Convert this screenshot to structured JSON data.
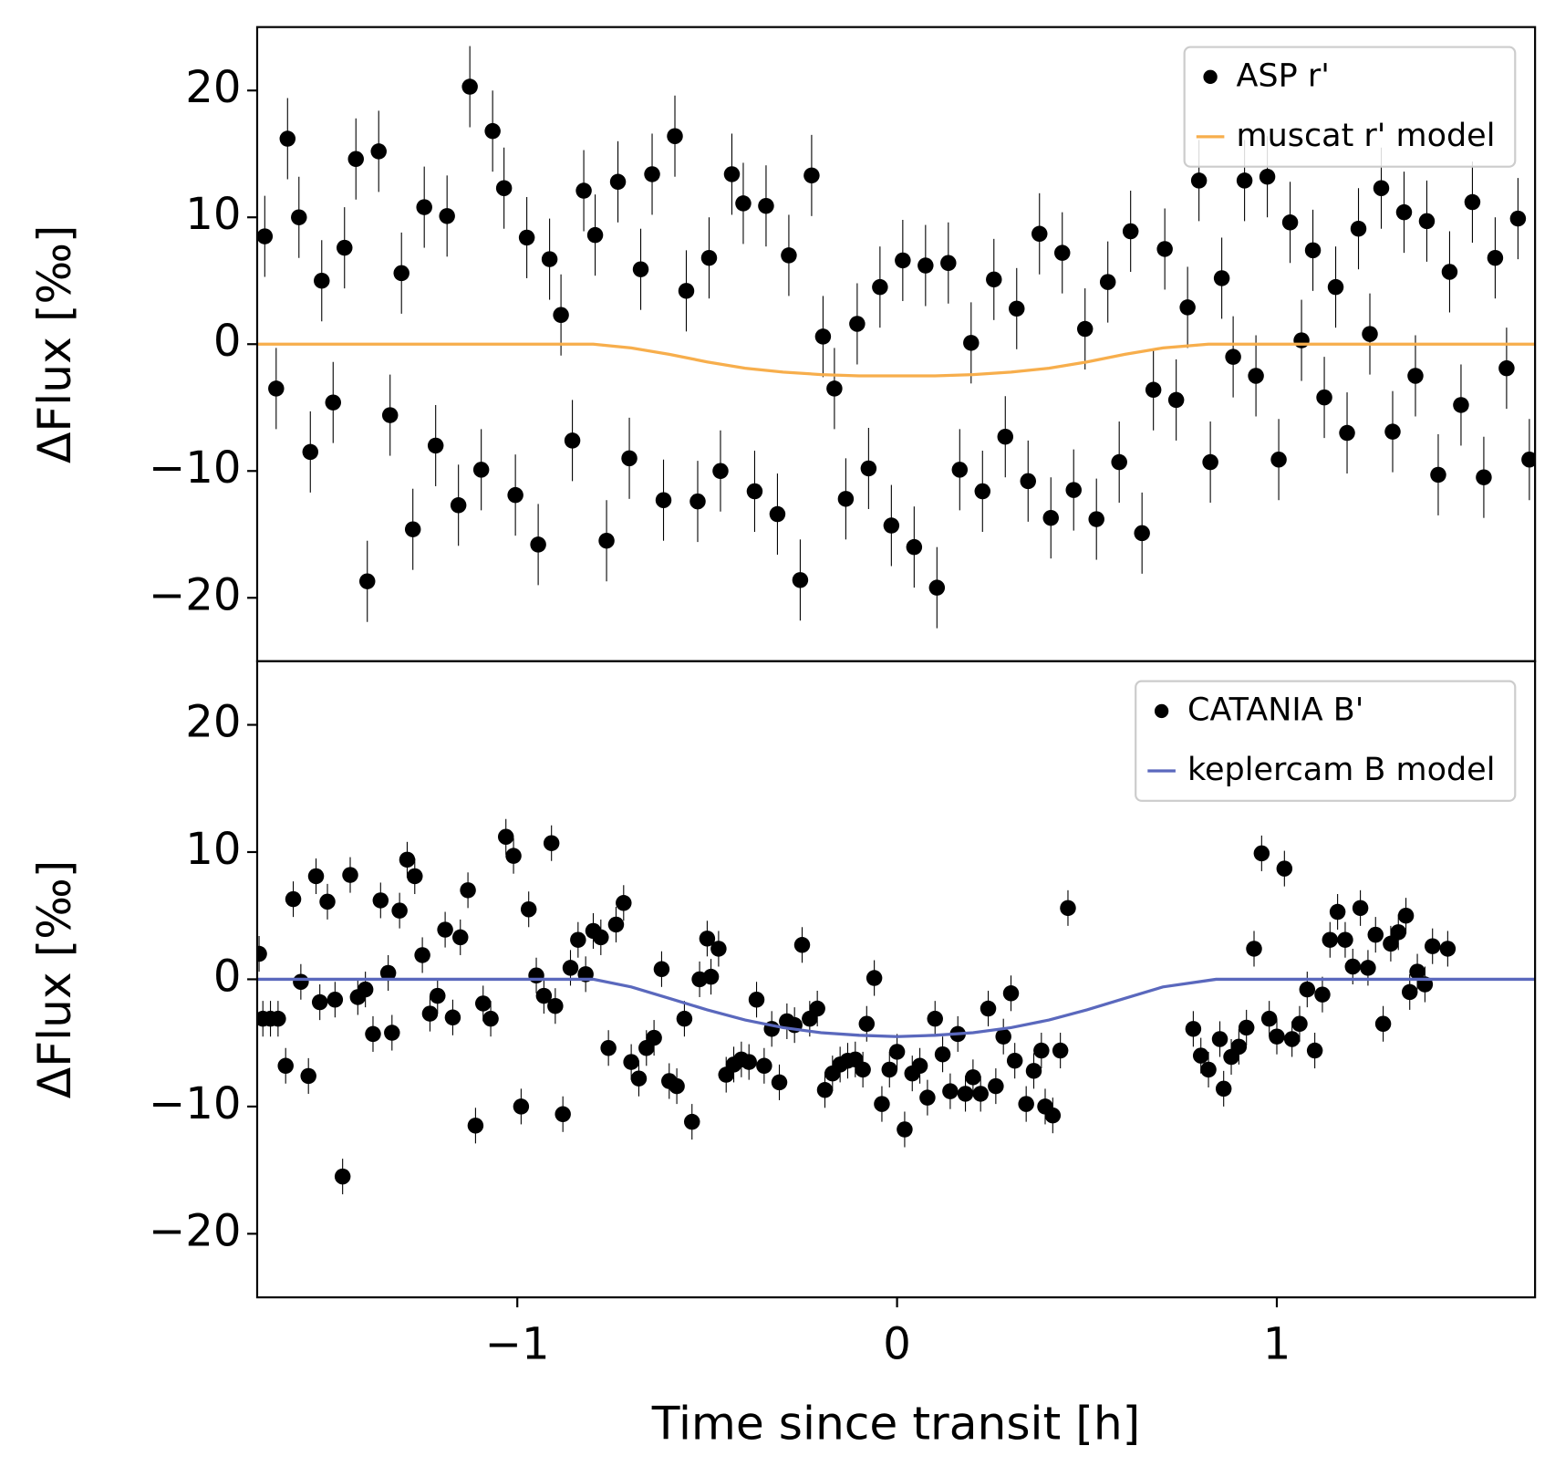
{
  "chart_data": [
    {
      "type": "scatter",
      "ylabel": "ΔFlux [‰]",
      "xlim": [
        -1.685,
        1.68
      ],
      "ylim": [
        -25,
        25
      ],
      "yticks": [
        {
          "value": -20,
          "label": "−20"
        },
        {
          "value": -10,
          "label": "−10"
        },
        0,
        10,
        20
      ],
      "legend": "upper right",
      "series": [
        {
          "name": "ASP r'",
          "color": "#000000",
          "yerr": 3.2,
          "x": [
            -1.665,
            -1.635,
            -1.605,
            -1.575,
            -1.545,
            -1.515,
            -1.485,
            -1.455,
            -1.425,
            -1.395,
            -1.365,
            -1.335,
            -1.305,
            -1.275,
            -1.245,
            -1.215,
            -1.185,
            -1.155,
            -1.125,
            -1.095,
            -1.065,
            -1.035,
            -1.005,
            -0.975,
            -0.945,
            -0.915,
            -0.885,
            -0.855,
            -0.825,
            -0.795,
            -0.765,
            -0.735,
            -0.705,
            -0.675,
            -0.645,
            -0.615,
            -0.585,
            -0.555,
            -0.525,
            -0.495,
            -0.465,
            -0.435,
            -0.405,
            -0.375,
            -0.345,
            -0.315,
            -0.285,
            -0.255,
            -0.225,
            -0.195,
            -0.165,
            -0.135,
            -0.105,
            -0.075,
            -0.045,
            -0.015,
            0.015,
            0.045,
            0.075,
            0.105,
            0.135,
            0.165,
            0.195,
            0.225,
            0.255,
            0.285,
            0.315,
            0.345,
            0.375,
            0.405,
            0.435,
            0.465,
            0.495,
            0.525,
            0.555,
            0.585,
            0.615,
            0.645,
            0.675,
            0.705,
            0.735,
            0.765,
            0.795,
            0.825,
            0.855,
            0.885,
            0.915,
            0.945,
            0.975,
            1.005,
            1.035,
            1.065,
            1.095,
            1.125,
            1.155,
            1.185,
            1.215,
            1.245,
            1.275,
            1.305,
            1.335,
            1.365,
            1.395,
            1.425,
            1.455,
            1.485,
            1.515,
            1.545,
            1.575,
            1.605,
            1.635,
            1.665
          ],
          "values": [
            8.5,
            -3.5,
            16.2,
            10,
            -8.5,
            5,
            -4.6,
            7.6,
            14.6,
            -18.7,
            15.2,
            -5.6,
            5.6,
            -14.6,
            10.8,
            -8,
            10.1,
            -12.7,
            20.3,
            -9.9,
            16.8,
            12.3,
            -11.9,
            8.4,
            -15.8,
            6.7,
            2.3,
            -7.6,
            12.1,
            8.6,
            -15.5,
            12.8,
            -9,
            5.9,
            13.4,
            -12.3,
            16.4,
            4.2,
            -12.4,
            6.8,
            -10,
            13.4,
            11.1,
            -11.6,
            10.9,
            -13.4,
            7,
            -18.6,
            13.3,
            0.6,
            -3.5,
            -12.2,
            1.6,
            -9.8,
            4.5,
            -14.3,
            6.6,
            -16,
            6.2,
            -19.2,
            6.4,
            -9.9,
            0.1,
            -11.6,
            5.1,
            -7.3,
            2.8,
            -10.8,
            8.7,
            -13.7,
            7.2,
            -11.5,
            1.2,
            -13.8,
            4.9,
            -9.3,
            8.9,
            -14.9,
            -3.6,
            7.5,
            -4.4,
            2.9,
            12.9,
            -9.3,
            5.2,
            -1,
            12.9,
            -2.5,
            13.2,
            -9.1,
            9.6,
            0.3,
            7.4,
            -4.2,
            4.5,
            -7,
            9.1,
            0.8,
            12.3,
            -6.9,
            10.4,
            -2.5,
            9.7,
            -10.3,
            5.7,
            -4.8,
            11.2,
            -10.5,
            6.8,
            -1.9,
            9.9,
            -9.1
          ]
        },
        {
          "name": "muscat r' model",
          "color": "#f7ae4c",
          "style": "line",
          "x": [
            -1.685,
            -0.8,
            -0.7,
            -0.6,
            -0.5,
            -0.4,
            -0.3,
            -0.2,
            -0.1,
            0,
            0.1,
            0.2,
            0.3,
            0.4,
            0.5,
            0.6,
            0.7,
            0.82,
            1.68
          ],
          "values": [
            0,
            0,
            -0.3,
            -0.8,
            -1.4,
            -1.9,
            -2.2,
            -2.4,
            -2.5,
            -2.5,
            -2.5,
            -2.4,
            -2.2,
            -1.9,
            -1.4,
            -0.8,
            -0.3,
            0,
            0
          ]
        }
      ]
    },
    {
      "type": "scatter",
      "ylabel": "ΔFlux [‰]",
      "xlabel": "Time since transit [h]",
      "xlim": [
        -1.685,
        1.68
      ],
      "ylim": [
        -25,
        25
      ],
      "xticks": [
        {
          "value": -1,
          "label": "−1"
        },
        0,
        1
      ],
      "yticks": [
        {
          "value": -20,
          "label": "−20"
        },
        {
          "value": -10,
          "label": "−10"
        },
        0,
        10,
        20
      ],
      "legend": "upper right",
      "series": [
        {
          "name": "CATANIA B'",
          "color": "#000000",
          "yerr": 1.4,
          "x": [
            -1.68,
            -1.67,
            -1.65,
            -1.63,
            -1.61,
            -1.59,
            -1.57,
            -1.55,
            -1.53,
            -1.52,
            -1.5,
            -1.48,
            -1.46,
            -1.44,
            -1.42,
            -1.4,
            -1.38,
            -1.36,
            -1.34,
            -1.33,
            -1.31,
            -1.29,
            -1.27,
            -1.25,
            -1.23,
            -1.21,
            -1.19,
            -1.17,
            -1.15,
            -1.13,
            -1.11,
            -1.09,
            -1.07,
            -1.03,
            -1.01,
            -0.99,
            -0.97,
            -0.95,
            -0.93,
            -0.91,
            -0.9,
            -0.88,
            -0.86,
            -0.84,
            -0.82,
            -0.8,
            -0.78,
            -0.76,
            -0.74,
            -0.72,
            -0.7,
            -0.68,
            -0.66,
            -0.64,
            -0.62,
            -0.6,
            -0.58,
            -0.56,
            -0.54,
            -0.52,
            -0.5,
            -0.49,
            -0.47,
            -0.45,
            -0.43,
            -0.41,
            -0.39,
            -0.37,
            -0.35,
            -0.33,
            -0.31,
            -0.29,
            -0.27,
            -0.25,
            -0.23,
            -0.21,
            -0.19,
            -0.17,
            -0.15,
            -0.13,
            -0.11,
            -0.09,
            -0.08,
            -0.06,
            -0.04,
            -0.02,
            0,
            0.02,
            0.04,
            0.06,
            0.08,
            0.1,
            0.12,
            0.14,
            0.16,
            0.18,
            0.2,
            0.22,
            0.24,
            0.26,
            0.28,
            0.3,
            0.31,
            0.34,
            0.36,
            0.38,
            0.39,
            0.41,
            0.43,
            0.45,
            0.78,
            0.8,
            0.82,
            0.85,
            0.86,
            0.88,
            0.9,
            0.92,
            0.94,
            0.96,
            0.98,
            1,
            1.02,
            1.04,
            1.06,
            1.08,
            1.1,
            1.12,
            1.14,
            1.16,
            1.18,
            1.2,
            1.22,
            1.24,
            1.26,
            1.28,
            1.3,
            1.32,
            1.34,
            1.35,
            1.37,
            1.39,
            1.41,
            1.45
          ],
          "values": [
            2,
            -3.1,
            -3.1,
            -3.1,
            -6.8,
            6.3,
            -0.2,
            -7.6,
            8.1,
            -1.8,
            6.1,
            -1.6,
            -15.5,
            8.2,
            -1.4,
            -0.8,
            -4.3,
            6.2,
            0.5,
            -4.2,
            5.4,
            9.4,
            8.1,
            1.9,
            -2.7,
            -1.3,
            3.9,
            -3,
            3.3,
            7,
            -11.5,
            -1.9,
            -3.1,
            11.2,
            9.7,
            -10,
            5.5,
            0.3,
            -1.3,
            10.7,
            -2.1,
            -10.6,
            0.9,
            3.1,
            0.4,
            3.8,
            3.3,
            -5.4,
            4.3,
            6,
            -6.5,
            -7.8,
            -5.4,
            -4.6,
            0.8,
            -8,
            -8.4,
            -3.1,
            -11.2,
            0,
            3.2,
            0.2,
            2.4,
            -7.5,
            -6.7,
            -6.3,
            -6.5,
            -1.6,
            -6.8,
            -3.9,
            -8.1,
            -3.3,
            -3.6,
            2.7,
            -3.1,
            -2.3,
            -8.7,
            -7.4,
            -6.7,
            -6.4,
            -6.3,
            -7.1,
            -3.5,
            0.1,
            -9.8,
            -7.1,
            -5.7,
            -11.8,
            -7.4,
            -6.8,
            -9.3,
            -3.1,
            -5.9,
            -8.8,
            -4.3,
            -9,
            -7.7,
            -9,
            -2.3,
            -8.4,
            -4.5,
            -1.1,
            -6.4,
            -9.8,
            -7.2,
            -5.6,
            -10,
            -10.7,
            -5.6,
            5.6,
            -3.9,
            -6,
            -7.1,
            -4.7,
            -8.6,
            -6.1,
            -5.3,
            -3.8,
            2.4,
            9.9,
            -3.1,
            -4.5,
            8.7,
            -4.7,
            -3.5,
            -0.8,
            -5.6,
            -1.2,
            3.1,
            5.3,
            3.1,
            1,
            5.6,
            0.9,
            3.5,
            -3.5,
            2.8,
            3.7,
            5,
            -1,
            0.6,
            -0.4,
            2.6,
            2.4
          ]
        },
        {
          "name": "keplercam B model",
          "color": "#5a68bd",
          "style": "line",
          "x": [
            -1.685,
            -0.8,
            -0.7,
            -0.6,
            -0.5,
            -0.4,
            -0.3,
            -0.2,
            -0.1,
            0,
            0.1,
            0.2,
            0.3,
            0.4,
            0.5,
            0.6,
            0.7,
            0.84,
            1.68
          ],
          "values": [
            0,
            0,
            -0.6,
            -1.5,
            -2.4,
            -3.2,
            -3.8,
            -4.2,
            -4.4,
            -4.5,
            -4.4,
            -4.2,
            -3.8,
            -3.2,
            -2.4,
            -1.5,
            -0.6,
            0,
            0
          ]
        }
      ]
    }
  ]
}
